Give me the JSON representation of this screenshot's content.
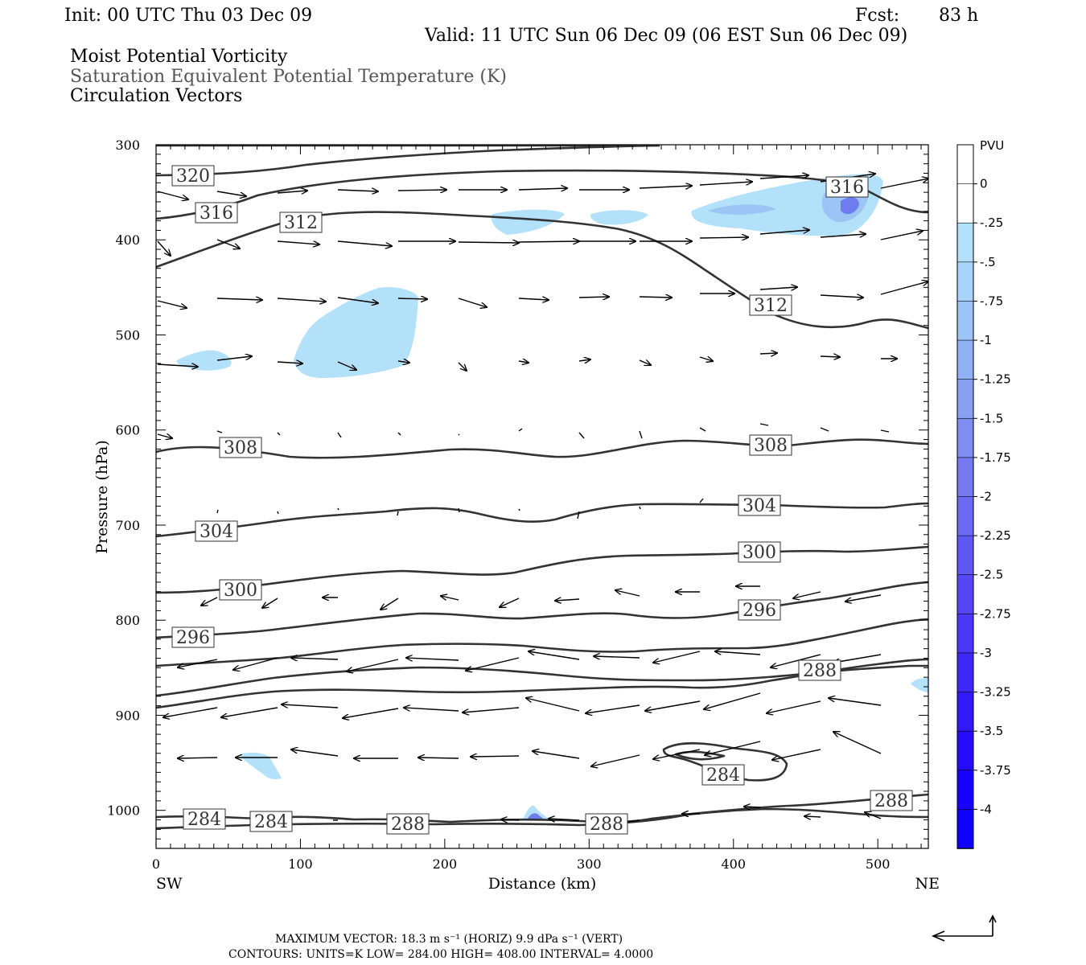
{
  "header": {
    "init": "Init: 00 UTC Thu 03 Dec 09",
    "fcst_label": "Fcst:",
    "fcst_value": "83 h",
    "valid": "Valid: 11 UTC Sun 06 Dec 09 (06 EST Sun 06 Dec 09)",
    "field1": "Moist Potential Vorticity",
    "field2": "Saturation Equivalent Potential Temperature (K)",
    "field3": "Circulation Vectors"
  },
  "colors": {
    "contour": "#333333",
    "pv_light": "#b4e1fa",
    "pv_medium": "#9cc4f5",
    "pv_dark": "#6e7cf0",
    "colorbar": [
      "#ffffff",
      "#ffffff",
      "#b4e1fa",
      "#a8d4fb",
      "#9cc4f5",
      "#8fb0f3",
      "#8a9ef2",
      "#7f8cf1",
      "#7479f2",
      "#6b6af3",
      "#6058f4",
      "#5547f5",
      "#4a37f7",
      "#3e28f8",
      "#3219fa",
      "#250cfc",
      "#1802ff",
      "#0f00ff"
    ]
  },
  "chart_data": {
    "type": "contour",
    "xlabel": "Distance (km)",
    "ylabel": "Pressure (hPa)",
    "xlim": [
      0,
      535
    ],
    "ylim": [
      1040,
      300
    ],
    "y_scale": "linear (inverted)",
    "x_ticks": [
      0,
      100,
      200,
      300,
      400,
      500
    ],
    "y_ticks": [
      300,
      400,
      500,
      600,
      700,
      800,
      900,
      1000
    ],
    "x_endpoints": [
      "SW",
      "NE"
    ],
    "colorbar": {
      "title": "PVU",
      "ticks": [
        "0",
        "-.25",
        "-.5",
        "-.75",
        "-1",
        "-1.25",
        "-1.5",
        "-1.75",
        "-2",
        "-2.25",
        "-2.5",
        "-2.75",
        "-3",
        "-3.25",
        "-3.5",
        "-3.75",
        "-4"
      ]
    },
    "contour_labels": [
      "320",
      "316",
      "312",
      "312",
      "316",
      "308",
      "308",
      "304",
      "304",
      "300",
      "300",
      "296",
      "296",
      "288",
      "284",
      "284",
      "284",
      "288",
      "288",
      "288"
    ],
    "footer": {
      "line1": "MAXIMUM VECTOR:  18.3 m s⁻¹ (HORIZ)          9.9 dPa s⁻¹ (VERT)",
      "line2": "CONTOURS:  UNITS=K   LOW=   284.00          HIGH=   408.00          INTERVAL=      4.0000"
    },
    "contour_low": 284,
    "contour_high": 408,
    "contour_interval": 4,
    "max_vector_horiz": 18.3,
    "max_vector_vert": 9.9
  }
}
